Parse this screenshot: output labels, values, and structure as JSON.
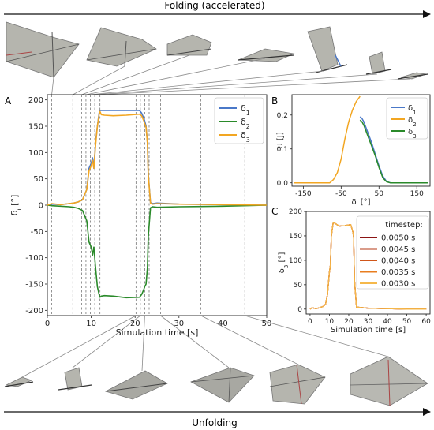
{
  "header": {
    "top_arrow_label": "Folding (accelerated)",
    "bottom_arrow_label": "Unfolding"
  },
  "colors": {
    "delta1": "#4a78c8",
    "delta2": "#2a8a2a",
    "delta3": "#f2a622",
    "ts_0050": "#8b1414",
    "ts_0045": "#b53a14",
    "ts_0040": "#d0561a",
    "ts_0035": "#e87d1f",
    "ts_0030": "#f5b84a"
  },
  "chart_data": [
    {
      "panel": "A",
      "type": "line",
      "xlabel": "Simulation time [s]",
      "ylabel": "δ_i [°]",
      "xlim": [
        0,
        50
      ],
      "ylim": [
        -210,
        210
      ],
      "xticks": [
        0,
        10,
        20,
        30,
        40,
        50
      ],
      "yticks": [
        -200,
        -150,
        -100,
        -50,
        0,
        50,
        100,
        150,
        200
      ],
      "grid": false,
      "legend_position": "top-right",
      "vlines": [
        1,
        5.8,
        7.8,
        8.8,
        9.8,
        10.8,
        12,
        20.2,
        21.2,
        22.2,
        23.2,
        25.8,
        35,
        45
      ],
      "series": [
        {
          "name": "δ1",
          "x": [
            0,
            1,
            3,
            5,
            6,
            7,
            8,
            9,
            9.5,
            10,
            10.3,
            10.6,
            11,
            11.4,
            11.8,
            12,
            12.3,
            13,
            15,
            18,
            21,
            21.5,
            22,
            22.2,
            22.5,
            22.8,
            23,
            23.5,
            24,
            25,
            30,
            40,
            50
          ],
          "y": [
            0,
            2,
            1,
            3,
            4,
            6,
            10,
            30,
            70,
            80,
            90,
            70,
            120,
            150,
            175,
            180,
            180,
            180,
            180,
            180,
            180,
            175,
            165,
            160,
            150,
            120,
            60,
            5,
            3,
            4,
            2,
            1,
            0
          ]
        },
        {
          "name": "δ2",
          "x": [
            0,
            1,
            3,
            5,
            6,
            7,
            8,
            9,
            9.5,
            10,
            10.3,
            10.6,
            11,
            11.4,
            11.8,
            12,
            12.3,
            13,
            15,
            18,
            21,
            21.5,
            22,
            22.2,
            22.5,
            22.8,
            23,
            23.5,
            24,
            25,
            30,
            40,
            50
          ],
          "y": [
            0,
            -1,
            -2,
            -3,
            -4,
            -6,
            -10,
            -30,
            -70,
            -80,
            -95,
            -80,
            -120,
            -155,
            -170,
            -175,
            -173,
            -172,
            -173,
            -176,
            -175,
            -170,
            -160,
            -155,
            -150,
            -120,
            -60,
            -5,
            -3,
            -4,
            -3,
            -2,
            0
          ]
        },
        {
          "name": "δ3",
          "x": [
            0,
            1,
            3,
            5,
            6,
            7,
            8,
            9,
            9.5,
            10,
            10.3,
            10.6,
            11,
            11.4,
            11.8,
            12,
            12.3,
            13,
            15,
            18,
            21,
            21.5,
            22,
            22.2,
            22.5,
            22.8,
            23,
            23.5,
            24,
            25,
            30,
            40,
            50
          ],
          "y": [
            0,
            3,
            1,
            3,
            4,
            6,
            10,
            30,
            65,
            75,
            85,
            70,
            115,
            150,
            172,
            178,
            172,
            171,
            170,
            171,
            173,
            170,
            160,
            155,
            148,
            118,
            58,
            4,
            2,
            3,
            2,
            1,
            0
          ]
        }
      ]
    },
    {
      "panel": "B",
      "type": "line",
      "xlabel": "δ_i [°]",
      "ylabel": "U [J]",
      "xlim": [
        -180,
        185
      ],
      "ylim": [
        -0.01,
        0.26
      ],
      "xticks": [
        -150,
        -50,
        50,
        150
      ],
      "yticks": [
        0.0,
        0.1,
        0.2
      ],
      "legend_position": "top-right",
      "series": [
        {
          "name": "δ1",
          "x": [
            0,
            5,
            10,
            20,
            30,
            40,
            50,
            60,
            70,
            80,
            180
          ],
          "y": [
            0.195,
            0.19,
            0.18,
            0.15,
            0.12,
            0.085,
            0.05,
            0.02,
            0.004,
            0,
            0
          ]
        },
        {
          "name": "δ2",
          "x": [
            -175,
            -80,
            -70,
            -60,
            -50,
            -40,
            -30,
            -20,
            -10,
            0
          ],
          "y": [
            0,
            0,
            0.01,
            0.03,
            0.07,
            0.13,
            0.18,
            0.215,
            0.24,
            0.255
          ]
        },
        {
          "name": "δ3",
          "x": [
            0,
            5,
            10,
            20,
            30,
            40,
            50,
            60,
            70,
            80,
            180
          ],
          "y": [
            0.185,
            0.18,
            0.17,
            0.14,
            0.11,
            0.08,
            0.045,
            0.015,
            0.003,
            0,
            0
          ]
        }
      ]
    },
    {
      "panel": "C",
      "type": "line",
      "xlabel": "Simulation time [s]",
      "ylabel": "δ_3 [°]",
      "xlim": [
        -2,
        62
      ],
      "ylim": [
        -10,
        200
      ],
      "xticks": [
        0,
        10,
        20,
        30,
        40,
        50,
        60
      ],
      "yticks": [
        0,
        50,
        100,
        150,
        200
      ],
      "legend_title": "timestep:",
      "legend_position": "right",
      "series": [
        {
          "name": "0.0050 s",
          "x": [
            0,
            1,
            3,
            5,
            7,
            8,
            9,
            10,
            10.5,
            11,
            12,
            15,
            18,
            21,
            22,
            22.5,
            23,
            24,
            30,
            40,
            50,
            60
          ],
          "y": [
            0,
            3,
            1,
            3,
            6,
            10,
            30,
            75,
            90,
            150,
            178,
            170,
            171,
            173,
            160,
            148,
            58,
            4,
            2,
            1,
            0,
            0
          ]
        },
        {
          "name": "0.0045 s",
          "x": [
            0,
            1,
            3,
            5,
            7,
            8,
            9,
            10,
            10.5,
            11,
            12,
            15,
            18,
            21,
            22,
            22.5,
            23,
            24,
            30,
            40,
            50,
            60
          ],
          "y": [
            0,
            3,
            1,
            3,
            6,
            10,
            30,
            75,
            90,
            150,
            178,
            170,
            171,
            173,
            160,
            148,
            58,
            4,
            2,
            1,
            0,
            0
          ]
        },
        {
          "name": "0.0040 s",
          "x": [
            0,
            1,
            3,
            5,
            7,
            8,
            9,
            10,
            10.5,
            11,
            12,
            15,
            18,
            21,
            22,
            22.5,
            23,
            24,
            30,
            40,
            50,
            60
          ],
          "y": [
            0,
            3,
            1,
            3,
            6,
            10,
            30,
            75,
            90,
            150,
            178,
            170,
            171,
            173,
            160,
            148,
            58,
            4,
            2,
            1,
            0,
            0
          ]
        },
        {
          "name": "0.0035 s",
          "x": [
            0,
            1,
            3,
            5,
            7,
            8,
            9,
            10,
            10.5,
            11,
            12,
            15,
            18,
            21,
            22,
            22.5,
            23,
            24,
            30,
            40,
            50,
            60
          ],
          "y": [
            0,
            3,
            1,
            3,
            6,
            10,
            30,
            75,
            90,
            150,
            178,
            170,
            171,
            173,
            160,
            148,
            58,
            4,
            2,
            1,
            0,
            0
          ]
        },
        {
          "name": "0.0030 s",
          "x": [
            0,
            1,
            3,
            5,
            7,
            8,
            9,
            10,
            10.5,
            11,
            12,
            15,
            18,
            21,
            22,
            22.5,
            23,
            24,
            30,
            40,
            50,
            60
          ],
          "y": [
            0,
            3,
            1,
            3,
            6,
            10,
            30,
            75,
            90,
            150,
            178,
            170,
            171,
            173,
            160,
            148,
            58,
            4,
            2,
            1,
            0,
            0
          ]
        }
      ]
    }
  ]
}
